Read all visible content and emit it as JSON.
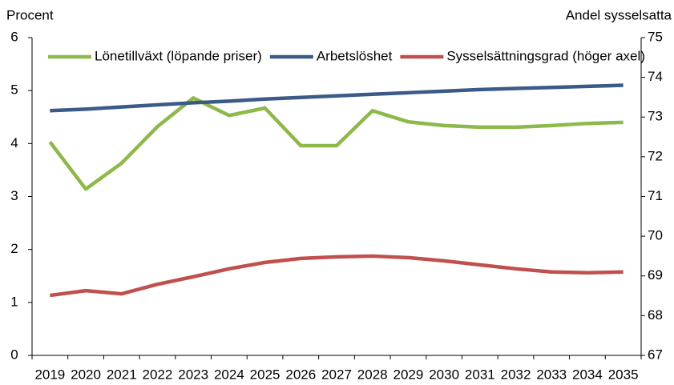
{
  "chart_data": {
    "type": "line",
    "ylabel": "Procent",
    "y2label": "Andel sysselsatta",
    "categories": [
      "2019",
      "2020",
      "2021",
      "2022",
      "2023",
      "2024",
      "2025",
      "2026",
      "2027",
      "2028",
      "2029",
      "2030",
      "2031",
      "2032",
      "2033",
      "2034",
      "2035"
    ],
    "series": [
      {
        "name": "Lönetillväxt (löpande priser)",
        "color": "#8db84a",
        "values": [
          4.03,
          3.14,
          3.63,
          4.32,
          4.86,
          4.53,
          4.67,
          3.96,
          3.96,
          4.62,
          4.41,
          4.34,
          4.31,
          4.31,
          4.34,
          4.38,
          4.4
        ]
      },
      {
        "name": "Arbetslöshet",
        "color": "#3b5a8a",
        "values": [
          4.62,
          4.65,
          4.69,
          4.73,
          4.77,
          4.8,
          4.84,
          4.87,
          4.9,
          4.93,
          4.96,
          4.99,
          5.02,
          5.04,
          5.06,
          5.08,
          5.1
        ]
      },
      {
        "name": "Sysselsättningsgrad (höger axel)",
        "color": "#c0504d",
        "axis": "y2",
        "values": [
          68.51,
          68.63,
          68.55,
          68.79,
          68.98,
          69.18,
          69.34,
          69.44,
          69.48,
          69.5,
          69.46,
          69.38,
          69.28,
          69.18,
          69.1,
          69.08,
          69.1
        ]
      }
    ],
    "ylim": [
      0,
      6
    ],
    "yticks": [
      0,
      1,
      2,
      3,
      4,
      5,
      6
    ],
    "y2lim": [
      67,
      75
    ],
    "y2ticks": [
      67,
      68,
      69,
      70,
      71,
      72,
      73,
      74,
      75
    ],
    "legend": "top",
    "grid": false
  }
}
